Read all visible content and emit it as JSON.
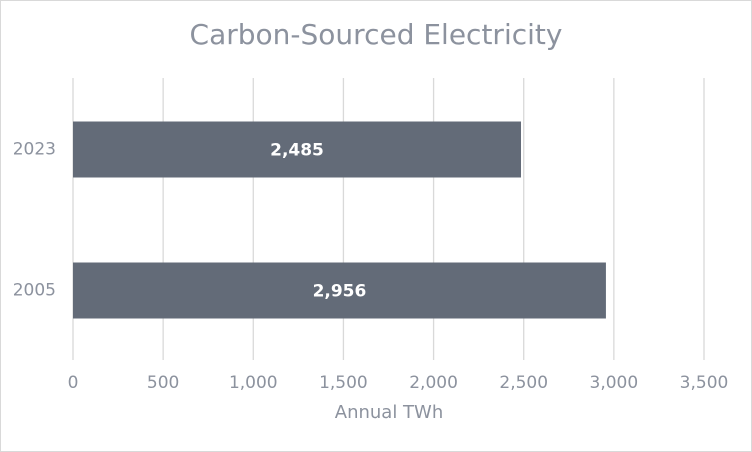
{
  "chart_data": {
    "type": "hbar",
    "title": "Carbon-Sourced Electricity",
    "x_label": "Annual TWh",
    "categories": [
      "2023",
      "2005"
    ],
    "values": [
      2485,
      2956
    ],
    "value_labels": [
      "2,485",
      "2,956"
    ],
    "color": "#636b78",
    "xlim": [
      0,
      3500
    ],
    "xticks": [
      0,
      500,
      {
        "value": 1000,
        "label": "1,000"
      },
      {
        "value": 1500,
        "label": "1,500"
      },
      {
        "value": 2000,
        "label": "2,000"
      },
      {
        "value": 2500,
        "label": "2,500"
      },
      {
        "value": 3000,
        "label": "3,000"
      },
      {
        "value": 3500,
        "label": "3,500"
      }
    ],
    "grid": true
  }
}
